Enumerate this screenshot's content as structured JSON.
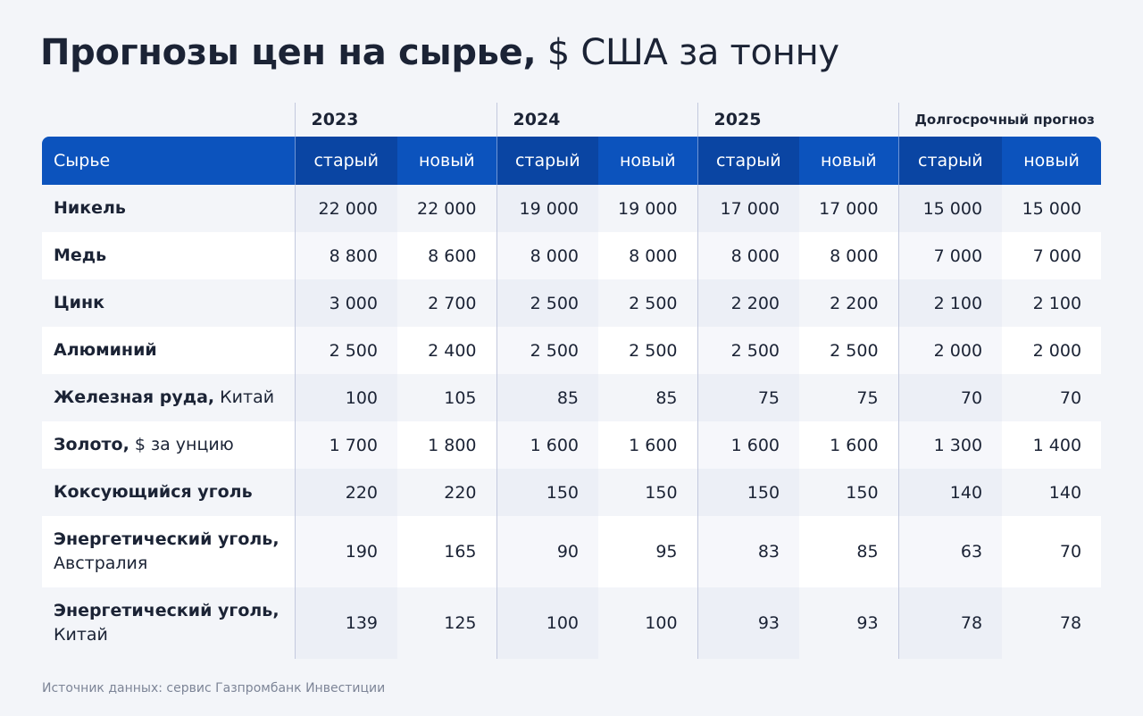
{
  "title": {
    "bold": "Прогнозы цен на сырье,",
    "regular": "$ США за тонну"
  },
  "table": {
    "periods": [
      "2023",
      "2024",
      "2025",
      "Долгосрочный прогноз"
    ],
    "header": {
      "first": "Сырье",
      "columns": [
        "старый",
        "новый",
        "старый",
        "новый",
        "старый",
        "новый",
        "старый",
        "новый"
      ]
    },
    "rows": [
      {
        "name": "Никель",
        "values": [
          "22 000",
          "22 000",
          "19 000",
          "19 000",
          "17 000",
          "17 000",
          "15 000",
          "15 000"
        ]
      },
      {
        "name": "Медь",
        "values": [
          "8 800",
          "8 600",
          "8 000",
          "8 000",
          "8 000",
          "8 000",
          "7 000",
          "7 000"
        ]
      },
      {
        "name": "Цинк",
        "values": [
          "3 000",
          "2 700",
          "2 500",
          "2 500",
          "2 200",
          "2 200",
          "2 100",
          "2 100"
        ]
      },
      {
        "name": "Алюминий",
        "values": [
          "2 500",
          "2 400",
          "2 500",
          "2 500",
          "2 500",
          "2 500",
          "2 000",
          "2 000"
        ]
      },
      {
        "name": "Железная руда,",
        "note": "Китай",
        "values": [
          "100",
          "105",
          "85",
          "85",
          "75",
          "75",
          "70",
          "70"
        ]
      },
      {
        "name": "Золото,",
        "note": "$ за унцию",
        "values": [
          "1 700",
          "1 800",
          "1 600",
          "1 600",
          "1 600",
          "1 600",
          "1 300",
          "1 400"
        ]
      },
      {
        "name": "Коксующийся уголь",
        "values": [
          "220",
          "220",
          "150",
          "150",
          "150",
          "150",
          "140",
          "140"
        ]
      },
      {
        "name": "Энергетический уголь,",
        "note": "Австралия",
        "break": true,
        "values": [
          "190",
          "165",
          "90",
          "95",
          "83",
          "85",
          "63",
          "70"
        ]
      },
      {
        "name": "Энергетический уголь,",
        "note": "Китай",
        "break": true,
        "values": [
          "139",
          "125",
          "100",
          "100",
          "93",
          "93",
          "78",
          "78"
        ]
      }
    ]
  },
  "source": "Источник данных: сервис Газпромбанк Инвестиции"
}
